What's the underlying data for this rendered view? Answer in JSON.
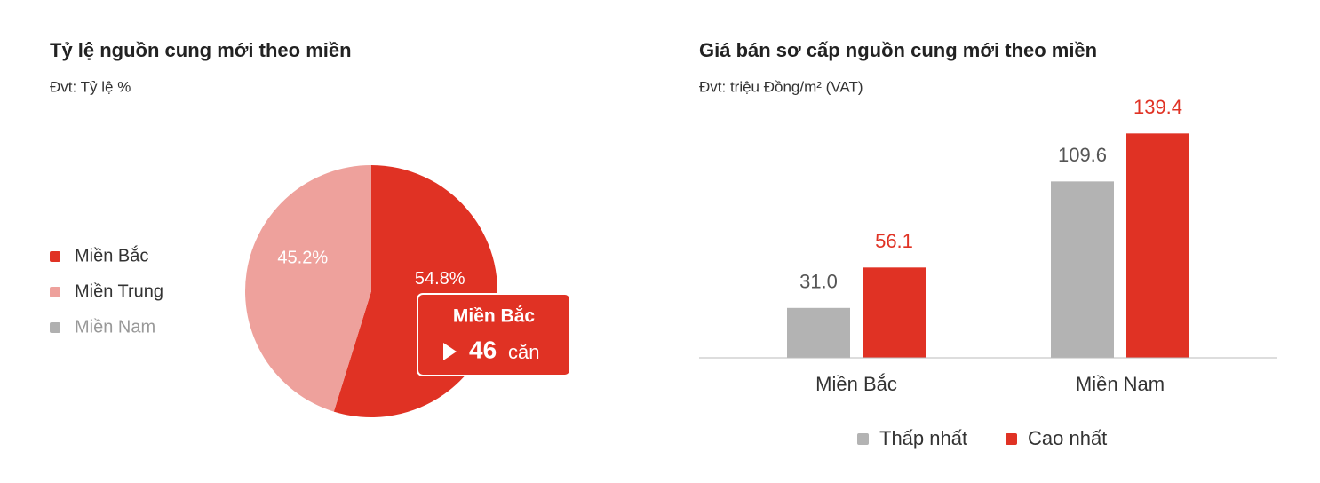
{
  "chart_data": [
    {
      "type": "pie",
      "title": "Tỷ lệ nguồn cung mới theo miền",
      "subtitle": "Đvt: Tỷ lệ %",
      "categories": [
        "Miền Bắc",
        "Miền Trung",
        "Miền Nam"
      ],
      "values": [
        54.8,
        45.2,
        null
      ],
      "value_labels": [
        "54.8%",
        "45.2%",
        null
      ],
      "colors": [
        "#e03224",
        "#eea19c",
        "#b0b0b0"
      ],
      "tooltip": {
        "category": "Miền Bắc",
        "value": 46,
        "unit": "căn"
      }
    },
    {
      "type": "bar",
      "title": "Giá bán sơ cấp nguồn cung mới theo miền",
      "subtitle": "Đvt: triệu Đồng/m² (VAT)",
      "categories": [
        "Miền Bắc",
        "Miền Nam"
      ],
      "series": [
        {
          "name": "Thấp nhất",
          "color": "#b3b3b3",
          "values": [
            31.0,
            109.6
          ],
          "value_labels": [
            "31.0",
            "109.6"
          ]
        },
        {
          "name": "Cao nhất",
          "color": "#e03224",
          "values": [
            56.1,
            139.4
          ],
          "value_labels": [
            "56.1",
            "139.4"
          ]
        }
      ],
      "ylim": [
        0,
        160
      ]
    }
  ]
}
